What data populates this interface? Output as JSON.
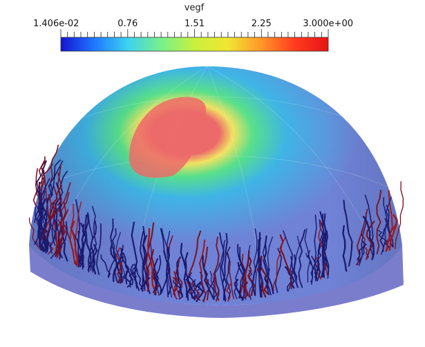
{
  "scalar_bar": {
    "title": "vegf",
    "range": [
      0.01406,
      3.0
    ],
    "labels": [
      "1.406e-02",
      "0.76",
      "1.51",
      "2.25",
      "3.000e+00"
    ],
    "colormap": [
      "#1414d2",
      "#1e78ff",
      "#3cd2f0",
      "#78f08c",
      "#c8f03c",
      "#f0e632",
      "#ff9628",
      "#ff3c1e",
      "#e61414"
    ]
  },
  "scene": {
    "dome_colors": {
      "base": "#6f82d6",
      "mid": "#3fb4e6",
      "ring": "#58e08a",
      "hot_edge": "#f0e262",
      "hot": "#ec6a6a"
    },
    "rim_color": "#6c6fc6",
    "vessel_colors": [
      "#1a1a6e",
      "#7a1020",
      "#a01818"
    ]
  }
}
